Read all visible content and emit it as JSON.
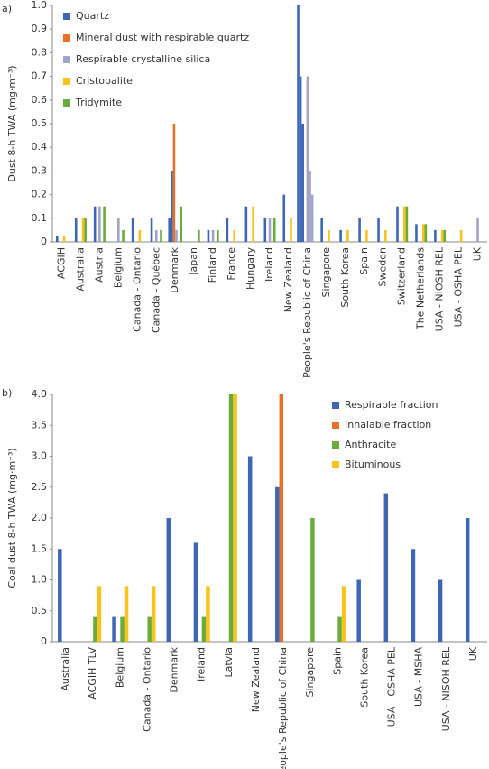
{
  "chart_data": [
    {
      "type": "bar",
      "panel": "a)",
      "ylabel": "Dust 8-h TWA (mg·m⁻³)",
      "categories": [
        "ACGIH",
        "Australia",
        "Austria",
        "Belgium",
        "Canada - Ontario",
        "Canada - Québec",
        "Denmark",
        "Japan",
        "Finland",
        "France",
        "Hungary",
        "Ireland",
        "New Zealand",
        "People's Republic of China",
        "Singapore",
        "South Korea",
        "Spain",
        "Sweden",
        "Switzerland",
        "The Netherlands",
        "USA - NIOSH REL",
        "USA - OSHA PEL",
        "UK"
      ],
      "series": [
        {
          "name": "Quartz",
          "color": "#3e66b5",
          "values": [
            0.025,
            0.1,
            0.15,
            null,
            0.1,
            0.1,
            [
              0.1,
              0.3
            ],
            null,
            0.05,
            0.1,
            0.15,
            0.1,
            0.2,
            [
              1.0,
              0.7,
              0.5
            ],
            0.1,
            0.05,
            0.1,
            0.1,
            0.15,
            0.075,
            0.05,
            null,
            null
          ]
        },
        {
          "name": "Mineral dust with respirable quartz",
          "color": "#e8712a",
          "values": [
            null,
            null,
            null,
            null,
            null,
            null,
            0.5,
            null,
            null,
            null,
            null,
            null,
            null,
            null,
            null,
            null,
            null,
            null,
            null,
            null,
            null,
            null,
            null
          ]
        },
        {
          "name": "Respirable crystalline silica",
          "color": "#a3a3c9",
          "values": [
            null,
            null,
            0.15,
            0.1,
            null,
            0.05,
            0.05,
            null,
            0.05,
            null,
            null,
            0.1,
            null,
            [
              0.7,
              0.3,
              0.2
            ],
            null,
            null,
            null,
            null,
            null,
            null,
            null,
            null,
            0.1
          ]
        },
        {
          "name": "Cristobalite",
          "color": "#f8c31a",
          "values": [
            0.025,
            0.1,
            null,
            null,
            0.05,
            null,
            null,
            null,
            null,
            0.05,
            0.15,
            null,
            0.1,
            null,
            0.05,
            0.05,
            0.05,
            0.05,
            0.15,
            0.075,
            0.05,
            0.05,
            null
          ]
        },
        {
          "name": "Tridymite",
          "color": "#6aab3e",
          "values": [
            null,
            0.1,
            0.15,
            0.05,
            null,
            0.05,
            0.15,
            0.05,
            0.05,
            null,
            null,
            0.1,
            null,
            null,
            null,
            null,
            null,
            null,
            0.15,
            0.075,
            0.05,
            null,
            null
          ]
        }
      ],
      "ylim": [
        0,
        1.0
      ],
      "yticks": [
        0,
        0.1,
        0.2,
        0.3,
        0.4,
        0.5,
        0.6,
        0.7,
        0.8,
        0.9,
        {
          "value": 1.0,
          "label": "1.0"
        }
      ],
      "legend": "top-left"
    },
    {
      "type": "bar",
      "panel": "b)",
      "ylabel": "Coal dust  8-h TWA (mg·m⁻³)",
      "categories": [
        "Australia",
        "ACGIH TLV",
        "Belgium",
        "Canada - Ontario",
        "Denmark",
        "Ireland",
        "Latvia",
        "New Zealand",
        "People's Republic of China",
        "Singapore",
        "Spain",
        "South Korea",
        "USA - OSHA PEL",
        "USA - MSHA",
        "USA - NISOH REL",
        "UK"
      ],
      "series": [
        {
          "name": "Respirable fraction",
          "color": "#3e66b5",
          "values": [
            1.5,
            null,
            0.4,
            null,
            2.0,
            1.6,
            null,
            3.0,
            2.5,
            null,
            null,
            1.0,
            2.4,
            1.5,
            1.0,
            2.0
          ]
        },
        {
          "name": "Inhalable fraction",
          "color": "#e8712a",
          "values": [
            null,
            null,
            null,
            null,
            null,
            null,
            null,
            null,
            4.0,
            null,
            null,
            null,
            null,
            null,
            null,
            null
          ]
        },
        {
          "name": "Anthracite",
          "color": "#6aab3e",
          "values": [
            null,
            0.4,
            0.4,
            0.4,
            null,
            0.4,
            4.0,
            null,
            null,
            2.0,
            0.4,
            null,
            null,
            null,
            null,
            null
          ]
        },
        {
          "name": "Bituminous",
          "color": "#f8c31a",
          "values": [
            null,
            0.9,
            0.9,
            0.9,
            null,
            0.9,
            4.0,
            null,
            null,
            null,
            0.9,
            null,
            null,
            null,
            null,
            null
          ]
        }
      ],
      "ylim": [
        0,
        4.0
      ],
      "yticks": [
        0,
        0.5,
        {
          "value": 1.0,
          "label": "1.0"
        },
        1.5,
        {
          "value": 2.0,
          "label": "2.0"
        },
        2.5,
        {
          "value": 3.0,
          "label": "3.0"
        },
        3.5,
        {
          "value": 4.0,
          "label": "4.0"
        }
      ],
      "legend": "top-right"
    }
  ]
}
